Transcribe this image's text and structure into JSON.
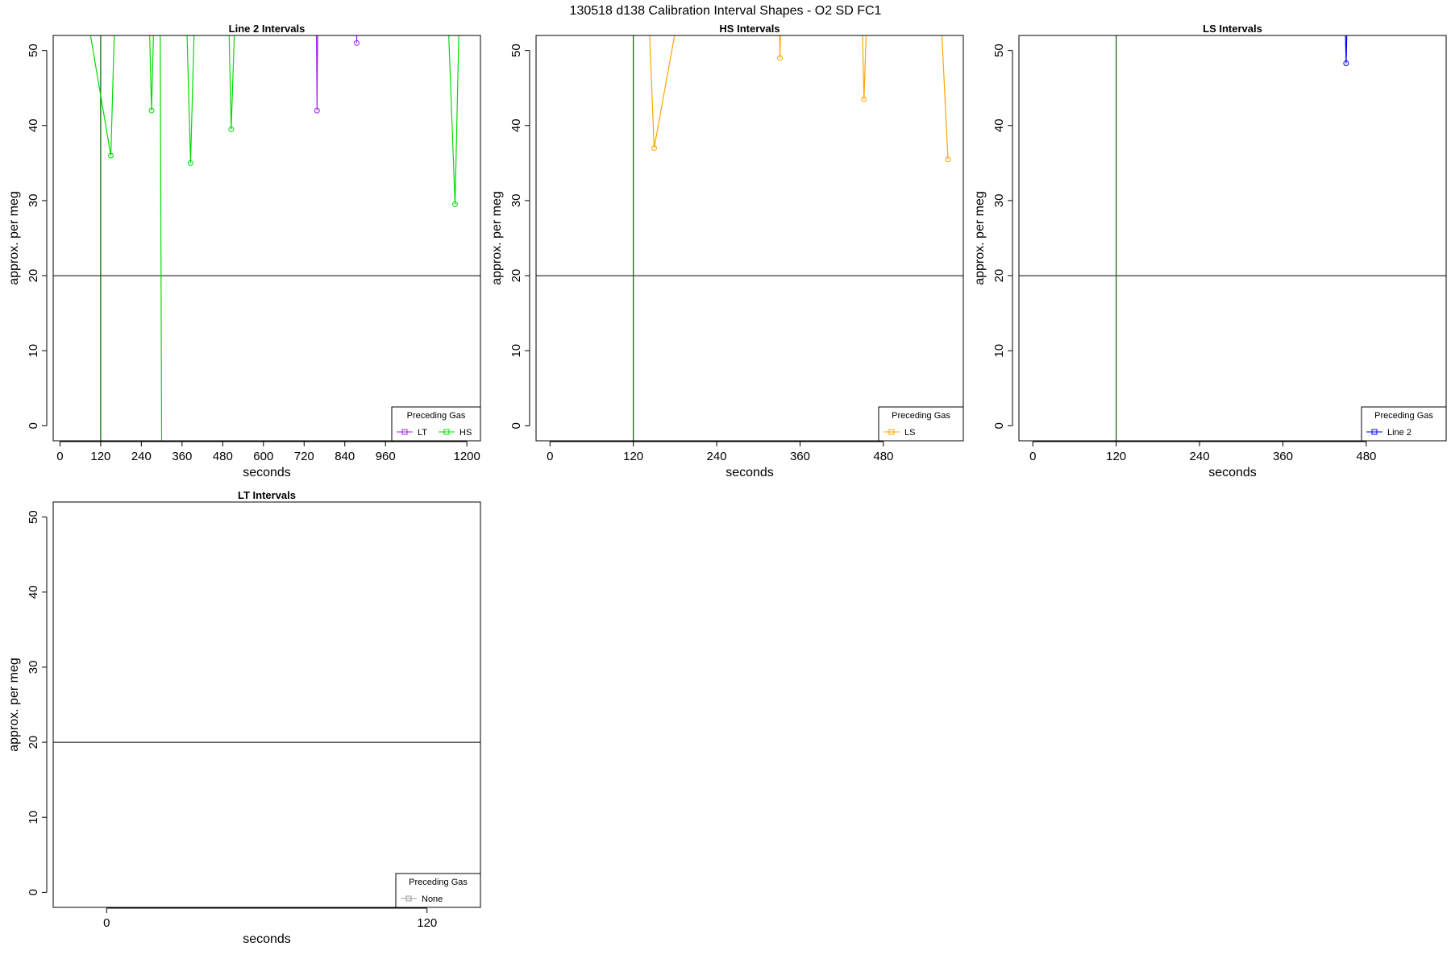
{
  "page_title": "130518   d138   Calibration Interval Shapes - O2 SD FC1",
  "chart_data": [
    {
      "type": "line",
      "title": "Line 2 Intervals",
      "xlabel": "seconds",
      "ylabel": "approx. per meg",
      "xlim": [
        -20,
        1240
      ],
      "ylim": [
        -2,
        52
      ],
      "x_ticks": [
        0,
        120,
        240,
        360,
        480,
        600,
        720,
        840,
        960,
        1200
      ],
      "y_ticks": [
        0,
        10,
        20,
        30,
        40,
        50
      ],
      "hline": 20,
      "vlines": [
        {
          "x": 120,
          "color": "#006400"
        }
      ],
      "legend": {
        "title": "Preceding Gas",
        "position": "bottom-right",
        "entries": [
          {
            "label": "LT",
            "color": "#a020f0"
          },
          {
            "label": "HS",
            "color": "#00dd00"
          }
        ]
      },
      "series": [
        {
          "color": "#00dd00",
          "values": [
            [
              80,
              60
            ],
            [
              90,
              52
            ],
            [
              150,
              36
            ],
            [
              160,
              52
            ]
          ]
        },
        {
          "color": "#00dd00",
          "values": [
            [
              260,
              60
            ],
            [
              270,
              42
            ],
            [
              280,
              60
            ]
          ]
        },
        {
          "color": "#00dd00",
          "values": [
            [
              370,
              60
            ],
            [
              385,
              35
            ],
            [
              400,
              60
            ]
          ]
        },
        {
          "color": "#00dd00",
          "values": [
            [
              495,
              60
            ],
            [
              505,
              39.5
            ],
            [
              520,
              60
            ]
          ]
        },
        {
          "color": "#00dd00",
          "values": [
            [
              1140,
              60
            ],
            [
              1165,
              29.5
            ],
            [
              1180,
              60
            ]
          ]
        },
        {
          "color": "#00dd00",
          "values": [
            [
              295,
              60
            ],
            [
              300,
              -5
            ]
          ]
        },
        {
          "color": "#a020f0",
          "values": [
            [
              755,
              60
            ],
            [
              758,
              42
            ],
            [
              761,
              60
            ]
          ]
        },
        {
          "color": "#a020f0",
          "values": [
            [
              875,
              60
            ],
            [
              875,
              51
            ],
            [
              877,
              60
            ]
          ]
        }
      ]
    },
    {
      "type": "line",
      "title": "HS Intervals",
      "xlabel": "seconds",
      "ylabel": "approx. per meg",
      "xlim": [
        -20,
        595
      ],
      "ylim": [
        -2,
        52
      ],
      "x_ticks": [
        0,
        120,
        240,
        360,
        480
      ],
      "y_ticks": [
        0,
        10,
        20,
        30,
        40,
        50
      ],
      "hline": 20,
      "vlines": [
        {
          "x": 120,
          "color": "#006400"
        }
      ],
      "legend": {
        "title": "Preceding Gas",
        "position": "bottom-right",
        "entries": [
          {
            "label": "LS",
            "color": "#ffa500"
          }
        ]
      },
      "series": [
        {
          "color": "#ffa500",
          "values": [
            [
              140,
              60
            ],
            [
              150,
              37
            ],
            [
              195,
              60
            ]
          ]
        },
        {
          "color": "#ffa500",
          "values": [
            [
              330,
              60
            ],
            [
              331,
              49
            ],
            [
              334,
              60
            ]
          ]
        },
        {
          "color": "#ffa500",
          "values": [
            [
              448,
              60
            ],
            [
              452,
              43.5
            ],
            [
              458,
              60
            ]
          ]
        },
        {
          "color": "#ffa500",
          "values": [
            [
              560,
              60
            ],
            [
              573,
              35.5
            ]
          ]
        }
      ]
    },
    {
      "type": "line",
      "title": "LS Intervals",
      "xlabel": "seconds",
      "ylabel": "approx. per meg",
      "xlim": [
        -20,
        595
      ],
      "ylim": [
        -2,
        52
      ],
      "x_ticks": [
        0,
        120,
        240,
        360,
        480
      ],
      "y_ticks": [
        0,
        10,
        20,
        30,
        40,
        50
      ],
      "hline": 20,
      "vlines": [
        {
          "x": 120,
          "color": "#006400"
        }
      ],
      "legend": {
        "title": "Preceding Gas",
        "position": "bottom-right",
        "entries": [
          {
            "label": "Line 2",
            "color": "#0000ff"
          }
        ]
      },
      "series": [
        {
          "color": "#0000ff",
          "values": [
            [
              448,
              60
            ],
            [
              451,
              48.3
            ],
            [
              454,
              60
            ]
          ]
        }
      ]
    },
    {
      "type": "line",
      "title": "LT Intervals",
      "xlabel": "seconds",
      "ylabel": "approx. per meg",
      "xlim": [
        -20,
        140
      ],
      "ylim": [
        -2,
        52
      ],
      "x_ticks": [
        0,
        120
      ],
      "y_ticks": [
        0,
        10,
        20,
        30,
        40,
        50
      ],
      "hline": 20,
      "vlines": [],
      "legend": {
        "title": "Preceding Gas",
        "position": "bottom-right",
        "entries": [
          {
            "label": "None",
            "color": "#999999"
          }
        ]
      },
      "series": []
    }
  ]
}
